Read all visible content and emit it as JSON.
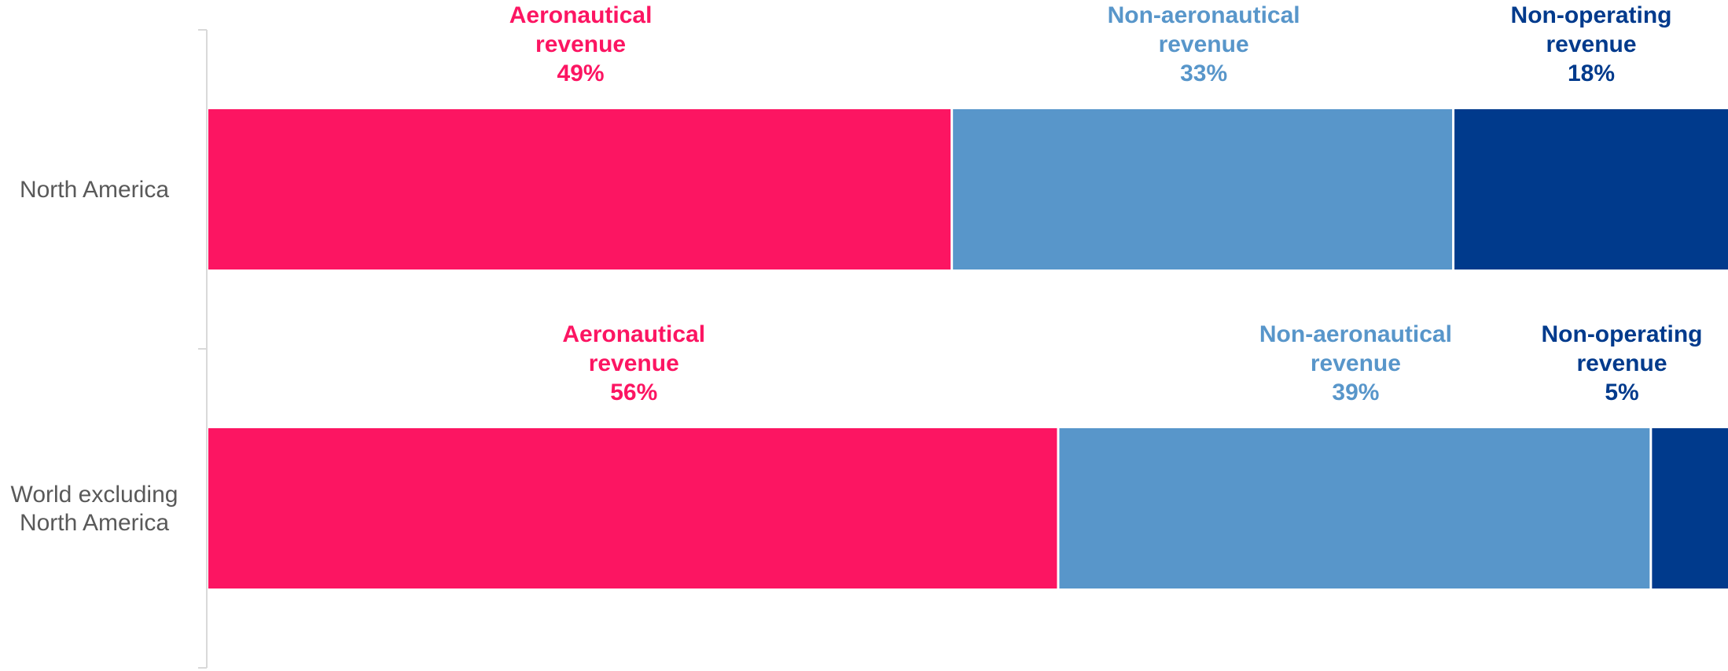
{
  "chart_data": {
    "type": "bar",
    "orientation": "horizontal",
    "stacked": true,
    "categories": [
      "North America",
      "World excluding North America"
    ],
    "category_lines": [
      [
        "North America"
      ],
      [
        "World excluding",
        "North America"
      ]
    ],
    "series": [
      {
        "name": "Aeronautical revenue",
        "label_lines": [
          "Aeronautical",
          "revenue"
        ],
        "color": "#FC1562",
        "values": [
          49,
          56
        ]
      },
      {
        "name": "Non-aeronautical revenue",
        "label_lines": [
          "Non-aeronautical",
          "revenue"
        ],
        "color": "#5896CA",
        "values": [
          33,
          39
        ]
      },
      {
        "name": "Non-operating revenue",
        "label_lines": [
          "Non-operating",
          "revenue"
        ],
        "color": "#003A8C",
        "values": [
          18,
          5
        ]
      }
    ],
    "value_suffix": "%",
    "xlim": [
      0,
      100
    ],
    "grid": false,
    "legend": "none",
    "axis_color": "#D9D9D9"
  }
}
